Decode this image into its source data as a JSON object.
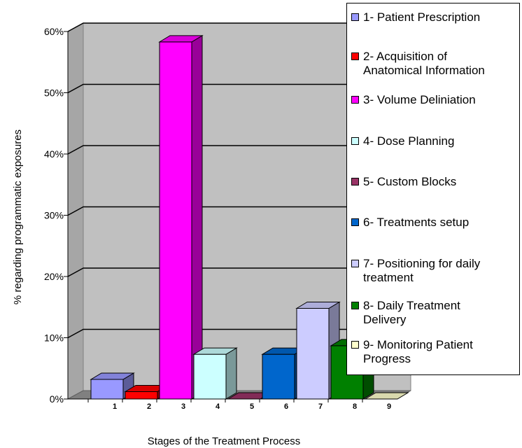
{
  "chart_data": {
    "type": "bar",
    "title": "",
    "xlabel": "Stages of the Treatment Process",
    "ylabel": "% regarding programmatic exposures",
    "ylim": [
      0,
      60
    ],
    "yticks": [
      "0%",
      "10%",
      "20%",
      "30%",
      "40%",
      "50%",
      "60%"
    ],
    "categories": [
      "1",
      "2",
      "3",
      "4",
      "5",
      "6",
      "7",
      "8",
      "9"
    ],
    "values": [
      3.2,
      1.2,
      58.3,
      7.3,
      0,
      7.3,
      14.8,
      8.7,
      0
    ],
    "series_labels": [
      "1- Patient Prescription",
      "2- Acquisition of\nAnatomical Information",
      "3- Volume Deliniation",
      "4- Dose Planning",
      "5- Custom Blocks",
      "6- Treatments setup",
      "7- Positioning for daily\ntreatment",
      "8- Daily Treatment\nDelivery",
      "9- Monitoring Patient\nProgress"
    ],
    "colors": [
      "#9999ff",
      "#ff0000",
      "#ff00ff",
      "#ccffff",
      "#993366",
      "#0066cc",
      "#ccccff",
      "#008000",
      "#ffffcc"
    ],
    "grid": true,
    "legend": "right"
  }
}
